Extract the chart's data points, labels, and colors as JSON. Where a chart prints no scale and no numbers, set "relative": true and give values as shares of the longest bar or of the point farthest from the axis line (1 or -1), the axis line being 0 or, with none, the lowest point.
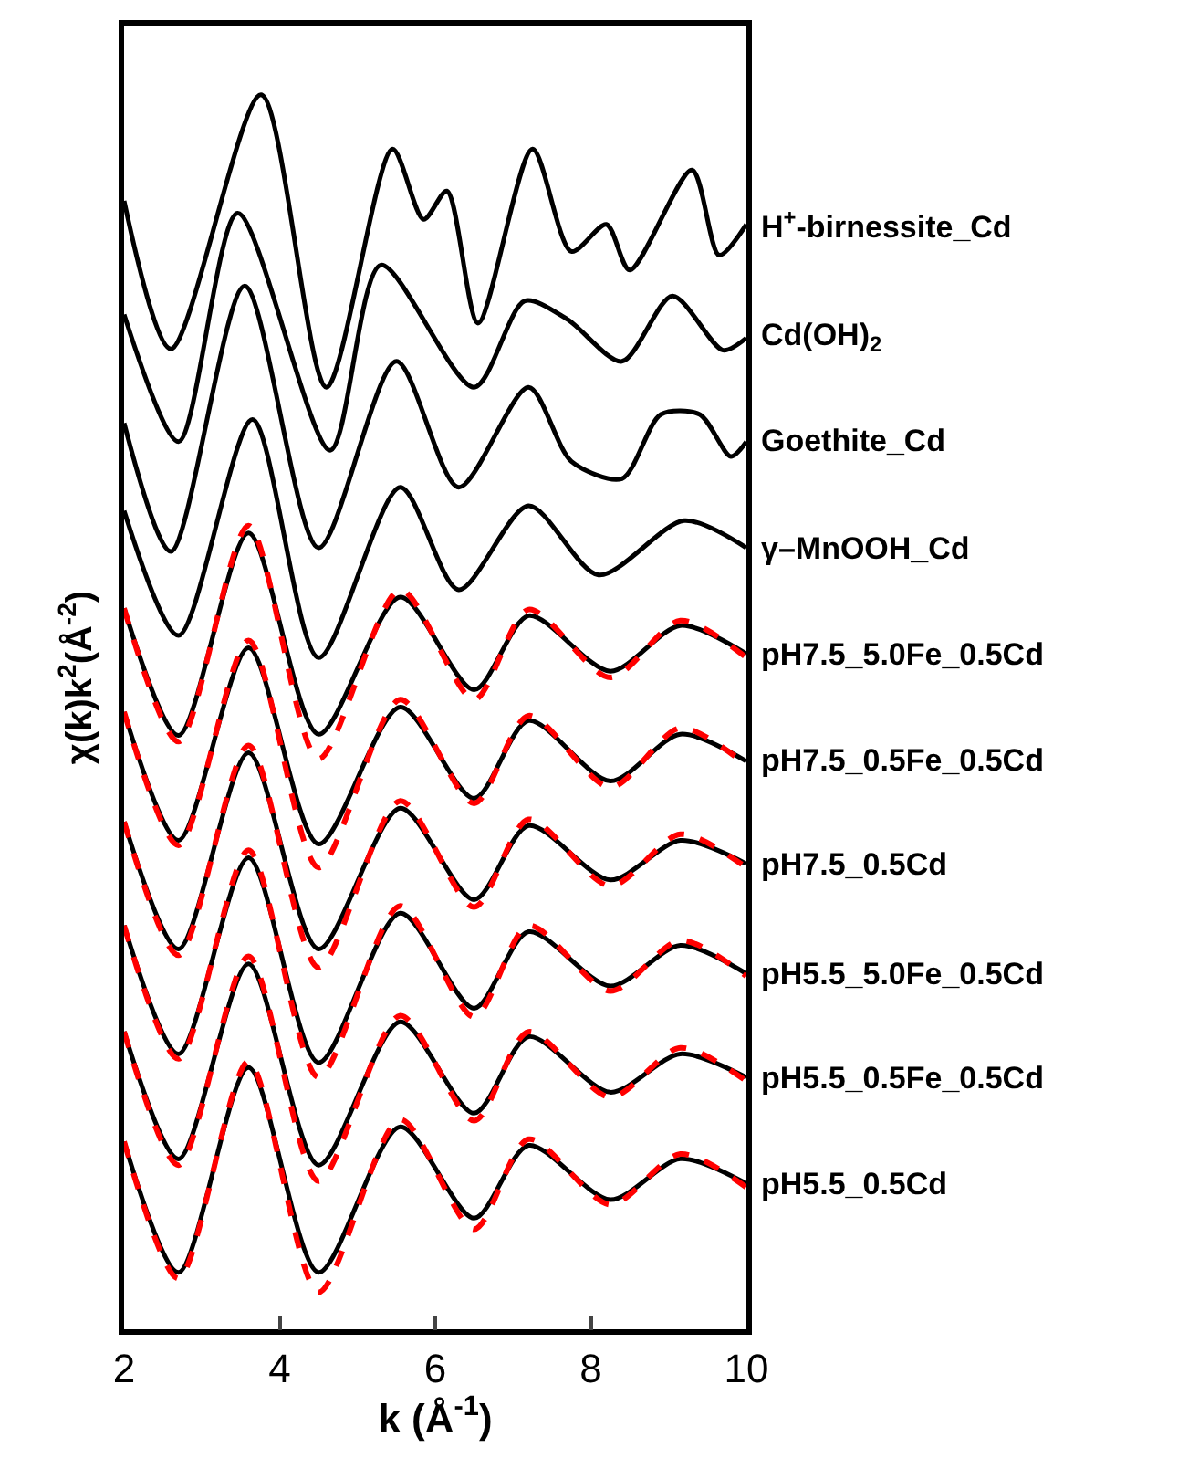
{
  "chart_data": {
    "type": "line",
    "xlabel": "k (Å$^{-1}$)",
    "ylabel": "χ(k)k$^{2}$(Å$^{-2}$)",
    "relative": true,
    "xlim": [
      2,
      10
    ],
    "xticks": [
      2,
      4,
      6,
      8,
      10
    ],
    "grid": false,
    "legend": false,
    "x": [
      2,
      2.7,
      3.6,
      4.5,
      5.55,
      6.5,
      7.2,
      8.25,
      9.15,
      10
    ],
    "series": [
      {
        "name": "H$^{+}$-birnessite_Cd",
        "color": "#000000",
        "line_style": "solid",
        "x": [
          2,
          2.6,
          3.76,
          4.6,
          5.45,
          5.85,
          6.15,
          6.55,
          7.25,
          7.75,
          8.2,
          8.5,
          9.3,
          9.65,
          10
        ],
        "values": [
          0.914,
          0.794,
          1.0,
          0.763,
          0.956,
          0.899,
          0.922,
          0.815,
          0.956,
          0.873,
          0.895,
          0.858,
          0.939,
          0.87,
          0.895
        ]
      },
      {
        "name": "Cd(OH)$_{2}$",
        "color": "#000000",
        "line_style": "solid",
        "x": [
          2,
          2.7,
          3.46,
          4.65,
          5.3,
          6.5,
          7.15,
          7.7,
          8.4,
          9.05,
          9.7,
          10
        ],
        "values": [
          0.822,
          0.719,
          0.904,
          0.712,
          0.862,
          0.763,
          0.833,
          0.818,
          0.784,
          0.837,
          0.793,
          0.803
        ]
      },
      {
        "name": "Goethite_Cd",
        "color": "#000000",
        "line_style": "solid",
        "x": [
          2,
          2.6,
          3.55,
          4.5,
          5.5,
          6.3,
          7.2,
          7.75,
          8.4,
          8.9,
          9.4,
          9.8,
          10
        ],
        "values": [
          0.734,
          0.63,
          0.845,
          0.633,
          0.784,
          0.682,
          0.763,
          0.703,
          0.689,
          0.741,
          0.741,
          0.707,
          0.719
        ]
      },
      {
        "name": "γ–MnOOH_Cd",
        "color": "#000000",
        "line_style": "solid",
        "x": [
          2,
          2.7,
          3.65,
          4.5,
          5.55,
          6.3,
          7.2,
          8.1,
          9.2,
          10
        ],
        "values": [
          0.663,
          0.562,
          0.737,
          0.544,
          0.682,
          0.599,
          0.667,
          0.611,
          0.655,
          0.633
        ]
      },
      {
        "name": "pH7.5_5.0Fe_0.5Cd",
        "color": "#000000",
        "line_style": "solid",
        "values": [
          0.584,
          0.481,
          0.645,
          0.482,
          0.593,
          0.518,
          0.578,
          0.533,
          0.57,
          0.547
        ]
      },
      {
        "color": "#ff0000",
        "line_style": "dashed",
        "values": [
          0.584,
          0.476,
          0.651,
          0.462,
          0.599,
          0.51,
          0.583,
          0.528,
          0.574,
          0.544
        ]
      },
      {
        "name": "pH7.5_0.5Fe_0.5Cd",
        "color": "#000000",
        "line_style": "solid",
        "values": [
          0.5,
          0.396,
          0.552,
          0.393,
          0.504,
          0.43,
          0.493,
          0.444,
          0.482,
          0.46
        ]
      },
      {
        "color": "#ff0000",
        "line_style": "dashed",
        "values": [
          0.5,
          0.392,
          0.558,
          0.374,
          0.51,
          0.426,
          0.497,
          0.439,
          0.487,
          0.457
        ]
      },
      {
        "name": "pH7.5_0.5Cd",
        "color": "#000000",
        "line_style": "solid",
        "values": [
          0.411,
          0.308,
          0.467,
          0.308,
          0.422,
          0.348,
          0.408,
          0.364,
          0.396,
          0.377
        ]
      },
      {
        "color": "#ff0000",
        "line_style": "dashed",
        "values": [
          0.411,
          0.303,
          0.473,
          0.293,
          0.428,
          0.342,
          0.413,
          0.359,
          0.401,
          0.374
        ]
      },
      {
        "name": "pH5.5_5.0Fe_0.5Cd",
        "color": "#000000",
        "line_style": "solid",
        "values": [
          0.327,
          0.223,
          0.382,
          0.216,
          0.337,
          0.26,
          0.322,
          0.278,
          0.311,
          0.288
        ]
      },
      {
        "color": "#ff0000",
        "line_style": "dashed",
        "values": [
          0.327,
          0.219,
          0.388,
          0.204,
          0.343,
          0.253,
          0.327,
          0.274,
          0.315,
          0.286
        ]
      },
      {
        "name": "pH5.5_0.5Fe_0.5Cd",
        "color": "#000000",
        "line_style": "solid",
        "values": [
          0.241,
          0.138,
          0.296,
          0.133,
          0.249,
          0.175,
          0.237,
          0.192,
          0.223,
          0.204
        ]
      },
      {
        "color": "#ff0000",
        "line_style": "dashed",
        "values": [
          0.241,
          0.133,
          0.302,
          0.12,
          0.254,
          0.169,
          0.241,
          0.188,
          0.228,
          0.201
        ]
      },
      {
        "name": "pH5.5_0.5Cd",
        "color": "#000000",
        "line_style": "solid",
        "values": [
          0.152,
          0.046,
          0.212,
          0.046,
          0.164,
          0.09,
          0.149,
          0.105,
          0.138,
          0.118
        ]
      },
      {
        "color": "#ff0000",
        "line_style": "dashed",
        "values": [
          0.152,
          0.041,
          0.217,
          0.03,
          0.17,
          0.081,
          0.154,
          0.101,
          0.142,
          0.115
        ]
      }
    ]
  }
}
